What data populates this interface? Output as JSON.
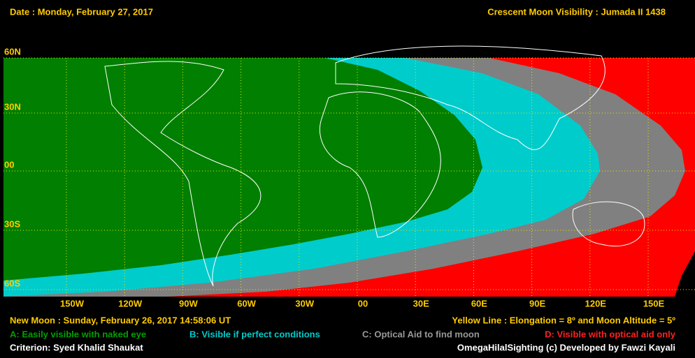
{
  "header": {
    "date": "Date : Monday, February 27, 2017",
    "title": "Crescent Moon Visibility : Jumada II  1438"
  },
  "map": {
    "lat_labels": [
      "60N",
      "30N",
      "00",
      "30S",
      "60S"
    ],
    "lon_labels": [
      "150W",
      "120W",
      "90W",
      "60W",
      "30W",
      "00",
      "30E",
      "60E",
      "90E",
      "120E",
      "150E"
    ]
  },
  "footer": {
    "new_moon": "New Moon : Sunday, February 26, 2017  14:58:06  UT",
    "yellow_line": "Yellow Line : Elongation = 8º  and Moon Altitude = 5º",
    "legend": [
      "A: Easily visible with naked eye",
      "B: Visible if perfect conditions",
      "C: Optical Aid to find moon",
      "D: Visible with optical aid only"
    ],
    "criterion": "Criterion: Syed Khalid Shaukat",
    "credit": "OmegaHilalSighting  (c)  Developed by Fawzi Kayali"
  }
}
